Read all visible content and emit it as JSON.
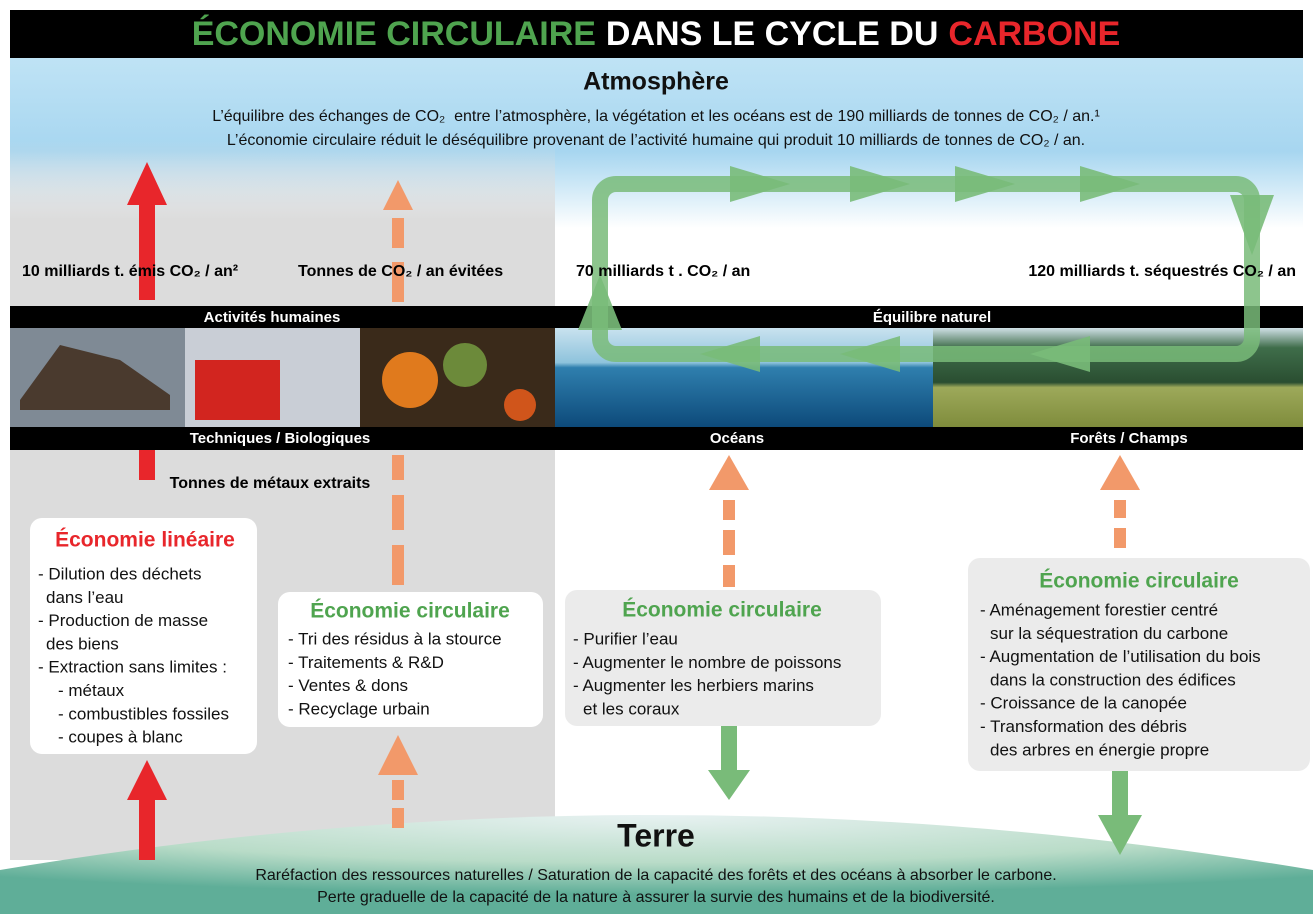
{
  "title": {
    "green": "ÉCONOMIE CIRCULAIRE",
    "white": "DANS LE CYCLE DU",
    "red": "CARBONE"
  },
  "atmosphere": {
    "heading": "Atmosphère",
    "lines": [
      "L’équilibre des échanges de CO₂  entre l’atmosphère, la végétation et les océans est de 190 milliards de tonnes de CO₂ / an.¹",
      "L’économie circulaire réduit le déséquilibre provenant de l’activité humaine qui produit 10 milliards de tonnes de CO₂ / an."
    ]
  },
  "flows": {
    "emitted": "10 milliards t. émis CO₂ / an²",
    "avoided": "Tonnes de CO₂ / an évitées",
    "ocean_exchange": "70 milliards t . CO₂ / an",
    "sequestered": "120 milliards t. séquestrés CO₂ / an",
    "metals": "Tonnes de métaux extraits"
  },
  "bands": {
    "top": [
      "Activités humaines",
      "Équilibre naturel"
    ],
    "bottom": [
      "Techniques / Biologiques",
      "Océans",
      "Forêts / Champs"
    ]
  },
  "boxes": [
    {
      "title": "Économie linéaire",
      "items": [
        "- Dilution des déchets",
        "dans l’eau",
        "- Production de masse",
        "des biens",
        "- Extraction sans limites :",
        "- métaux",
        "- combustibles fossiles",
        "- coupes à blanc"
      ]
    },
    {
      "title": "Économie circulaire",
      "items": [
        "- Tri des résidus à la stource",
        "- Traitements & R&D",
        "- Ventes & dons",
        "- Recyclage urbain"
      ]
    },
    {
      "title": "Économie circulaire",
      "items": [
        "- Purifier l’eau",
        "- Augmenter le nombre de poissons",
        "- Augmenter les herbiers marins",
        "et les coraux"
      ]
    },
    {
      "title": "Économie circulaire",
      "items": [
        "- Aménagement forestier centré",
        "sur la séquestration du carbone",
        "- Augmentation de l’utilisation du bois",
        "dans la construction des édifices",
        "- Croissance de la canopée",
        "- Transformation des débris",
        "des arbres en énergie propre"
      ]
    }
  ],
  "earth": {
    "heading": "Terre",
    "lines": [
      "Raréfaction des ressources naturelles / Saturation de la capacité des forêts et des océans à absorber le carbone.",
      "Perte graduelle de la capacité de la nature à assurer la survie des humains et de la biodiversité."
    ]
  }
}
